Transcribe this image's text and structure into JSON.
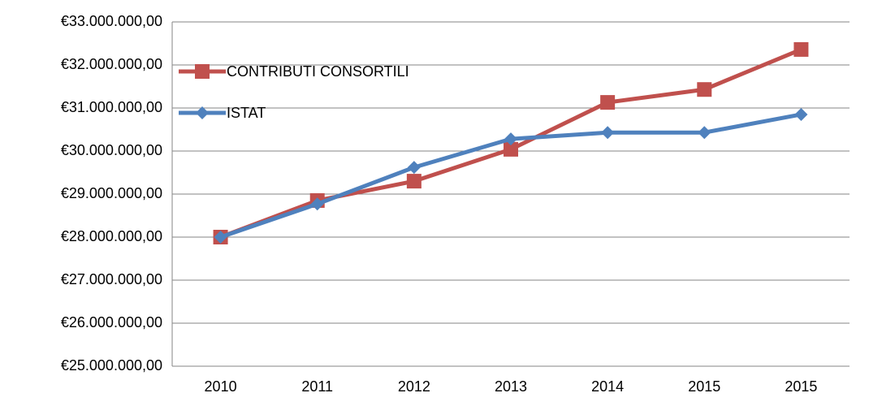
{
  "chart_data": {
    "type": "line",
    "categories": [
      "2010",
      "2011",
      "2012",
      "2013",
      "2014",
      "2015",
      "2015"
    ],
    "series": [
      {
        "name": "CONTRIBUTI CONSORTILI",
        "color": "#c0504d",
        "marker": "square",
        "values": [
          28000000,
          28850000,
          29300000,
          30040000,
          31130000,
          31430000,
          32360000
        ]
      },
      {
        "name": "ISTAT",
        "color": "#4f81bd",
        "marker": "diamond",
        "values": [
          28000000,
          28770000,
          29620000,
          30280000,
          30430000,
          30430000,
          30850000
        ]
      }
    ],
    "ylim": [
      25000000,
      33000000
    ],
    "yticks": [
      {
        "value": 25000000,
        "label": "€25.000.000,00"
      },
      {
        "value": 26000000,
        "label": "€26.000.000,00"
      },
      {
        "value": 27000000,
        "label": "€27.000.000,00"
      },
      {
        "value": 28000000,
        "label": "€28.000.000,00"
      },
      {
        "value": 29000000,
        "label": "€29.000.000,00"
      },
      {
        "value": 30000000,
        "label": "€30.000.000,00"
      },
      {
        "value": 31000000,
        "label": "€31.000.000,00"
      },
      {
        "value": 32000000,
        "label": "€32.000.000,00"
      },
      {
        "value": 33000000,
        "label": "€33.000.000,00"
      }
    ],
    "grid": true,
    "legend": "upper left"
  }
}
